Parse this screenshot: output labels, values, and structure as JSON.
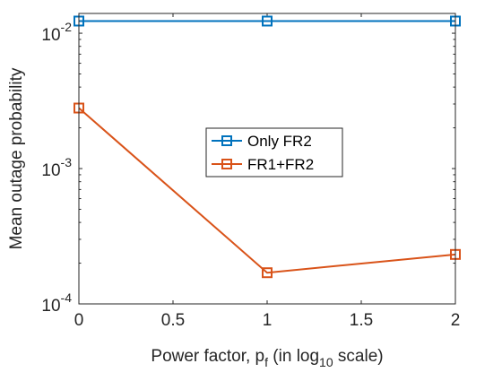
{
  "chart_data": {
    "type": "line",
    "title": "",
    "xlabel": {
      "main": "Power factor, p",
      "sub1": "f",
      "mid": " (in log",
      "sub2": "10",
      "end": " scale)"
    },
    "ylabel": "Mean outage probability",
    "y_scale": "log",
    "xlim": [
      0,
      2
    ],
    "ylim": [
      0.0001,
      0.014
    ],
    "x_ticks": [
      {
        "value": 0,
        "label": "0"
      },
      {
        "value": 0.5,
        "label": "0.5"
      },
      {
        "value": 1,
        "label": "1"
      },
      {
        "value": 1.5,
        "label": "1.5"
      },
      {
        "value": 2,
        "label": "2"
      }
    ],
    "y_ticks": [
      {
        "value": 0.0001,
        "base": "10",
        "exp": "-4"
      },
      {
        "value": 0.001,
        "base": "10",
        "exp": "-3"
      },
      {
        "value": 0.01,
        "base": "10",
        "exp": "-2"
      }
    ],
    "x": [
      0,
      1,
      2
    ],
    "series": [
      {
        "name": "Only FR2",
        "color": "#0072BD",
        "marker": "square",
        "values": [
          0.0123,
          0.0123,
          0.0123
        ]
      },
      {
        "name": "FR1+FR2",
        "color": "#D95319",
        "marker": "square",
        "values": [
          0.0028,
          0.00017,
          0.000232
        ]
      }
    ],
    "legend_position": "center",
    "grid": false
  }
}
